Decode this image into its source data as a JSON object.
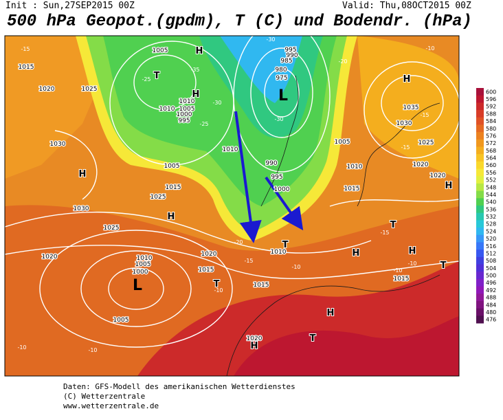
{
  "header": {
    "init": "Init : Sun,27SEP2015 00Z",
    "valid": "Valid: Thu,08OCT2015 00Z",
    "title": "500 hPa Geopot.(gpdm), T (C) und Bodendr. (hPa)"
  },
  "legend": {
    "levels": [
      600,
      596,
      592,
      588,
      584,
      580,
      576,
      572,
      568,
      564,
      560,
      556,
      552,
      548,
      544,
      540,
      536,
      532,
      528,
      524,
      520,
      516,
      512,
      508,
      504,
      500,
      496,
      492,
      488,
      484,
      480,
      476
    ],
    "colors": [
      "#a8113a",
      "#bd1730",
      "#cc2a2a",
      "#d83d28",
      "#e05226",
      "#e66a22",
      "#ec8220",
      "#f0981e",
      "#f4ae1e",
      "#f8c424",
      "#fad82c",
      "#f6e838",
      "#e2f040",
      "#b8e844",
      "#84dc48",
      "#50d050",
      "#30c880",
      "#28c8b0",
      "#28c8d8",
      "#30b8f0",
      "#3898f8",
      "#3878f8",
      "#3858f0",
      "#4040e0",
      "#5030d8",
      "#6828d0",
      "#8020c8",
      "#9018b8",
      "#901898",
      "#801480",
      "#6a1068",
      "#501050"
    ]
  },
  "map": {
    "isobar_labels": [
      "1005",
      "1015",
      "1020",
      "1025",
      "1030",
      "1030",
      "1025",
      "1020",
      "1010",
      "1005",
      "1000",
      "1005",
      "1015",
      "1020",
      "1015",
      "1010",
      "1010",
      "1005",
      "1015",
      "1025",
      "995",
      "990",
      "985",
      "980",
      "975",
      "990",
      "995",
      "1000",
      "1005",
      "1010",
      "1015",
      "1020",
      "1025",
      "1030",
      "1035",
      "1020",
      "1015",
      "1020",
      "1010",
      "1010",
      "1005",
      "1000",
      "995"
    ],
    "temperature_labels": [
      "-15",
      "-25",
      "-30",
      "-30",
      "-25",
      "-20",
      "-15",
      "-10",
      "-10",
      "-10",
      "-10",
      "-10",
      "-15",
      "-15",
      "-15",
      "-10",
      "-10",
      "-20",
      "-30",
      "-35"
    ],
    "pressure_centers": [
      "H",
      "T",
      "H",
      "H",
      "H",
      "H",
      "L",
      "L",
      "T",
      "T",
      "H",
      "H",
      "T",
      "T",
      "H",
      "T",
      "H",
      "H"
    ]
  },
  "footer": [
    "Daten: GFS-Modell des amerikanischen Wetterdienstes",
    "(C) Wetterzentrale",
    "www.wetterzentrale.de"
  ]
}
